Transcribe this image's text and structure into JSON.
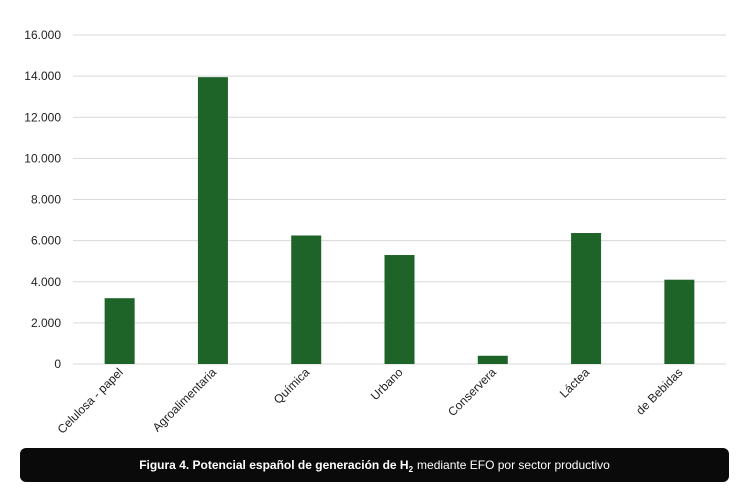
{
  "chart_data": {
    "type": "bar",
    "title": "",
    "xlabel": "",
    "ylabel": "",
    "categories": [
      "Celulosa - papel",
      "Agroalimentaria",
      "Química",
      "Urbano",
      "Conservera",
      "Láctea",
      "de Bebidas"
    ],
    "values": [
      3200,
      13950,
      6250,
      5300,
      400,
      6370,
      4100
    ],
    "ylim": [
      0,
      16000
    ],
    "yticks": [
      0,
      2000,
      4000,
      6000,
      8000,
      10000,
      12000,
      14000,
      16000
    ],
    "ytick_labels": [
      "0",
      "2.000",
      "4.000",
      "6.000",
      "8.000",
      "10.000",
      "12.000",
      "14.000",
      "16.000"
    ],
    "grid": true,
    "bar_color": "#1e6429",
    "grid_color": "#d9d9d9"
  },
  "caption": {
    "label": "Figura 4. Potencial español de generación de H",
    "subscript": "2",
    "rest": "mediante EFO por sector productivo"
  }
}
